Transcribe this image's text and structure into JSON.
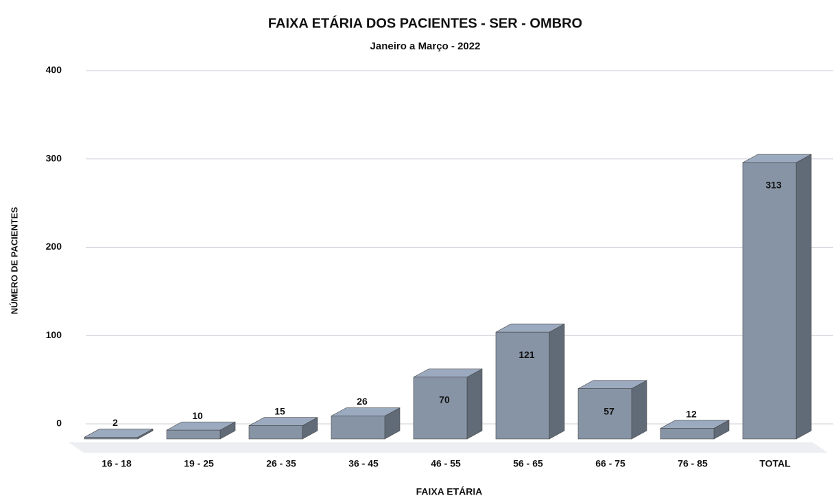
{
  "chart_data": {
    "type": "bar3d",
    "title": "FAIXA ETÁRIA DOS PACIENTES - SER - OMBRO",
    "subtitle": "Janeiro a Março - 2022",
    "x_label": "FAIXA ETÁRIA",
    "y_label": "NÚMERO DE PACIENTES",
    "categories": [
      "16 - 18",
      "19 - 25",
      "26 - 35",
      "36 - 45",
      "46 - 55",
      "56 - 65",
      "66 - 75",
      "76 - 85",
      "TOTAL"
    ],
    "values": [
      2,
      10,
      15,
      26,
      70,
      121,
      57,
      12,
      313
    ],
    "color": "#8794a6",
    "ylim": [
      0,
      400
    ],
    "yticks": [
      0,
      100,
      200,
      300,
      400
    ],
    "grid": true
  }
}
